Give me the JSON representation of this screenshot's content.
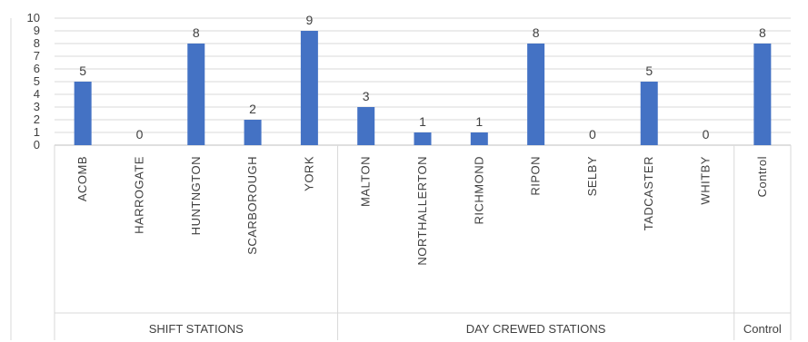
{
  "chart_data": {
    "type": "bar",
    "ylim": [
      0,
      10
    ],
    "yticks": [
      "0",
      "1",
      "2",
      "3",
      "4",
      "5",
      "6",
      "7",
      "8",
      "9",
      "10"
    ],
    "grid": true,
    "bar_color": "#4472c4",
    "categories": [
      "ACOMB",
      "HARROGATE",
      "HUNTNGTON",
      "SCARBOROUGH",
      "YORK",
      "MALTON",
      "NORTHALLERTON",
      "RICHMOND",
      "RIPON",
      "SELBY",
      "TADCASTER",
      "WHITBY",
      "Control"
    ],
    "values": [
      5,
      0,
      8,
      2,
      9,
      3,
      1,
      1,
      8,
      0,
      5,
      0,
      8
    ],
    "groups": [
      {
        "label": "SHIFT STATIONS",
        "count": 5
      },
      {
        "label": "DAY CREWED STATIONS",
        "count": 7
      },
      {
        "label": "Control",
        "count": 1
      }
    ]
  }
}
